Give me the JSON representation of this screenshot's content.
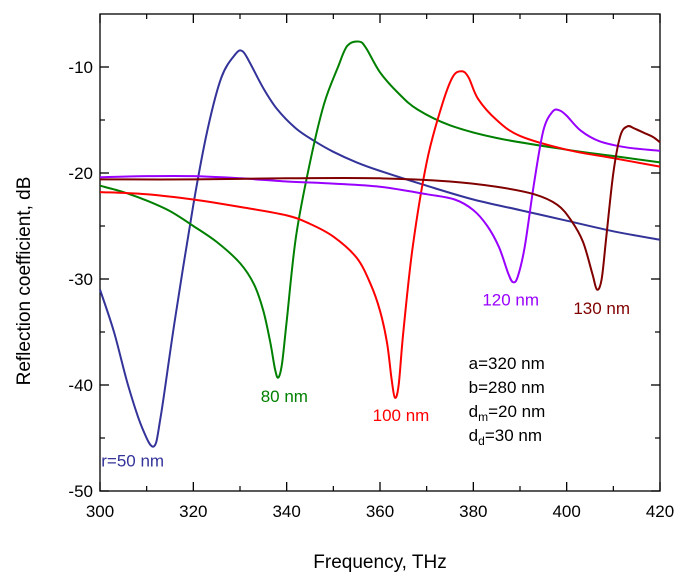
{
  "chart_data": {
    "type": "line",
    "xlabel": "Frequency, THz",
    "ylabel": "Reflection coefficient, dB",
    "xlim": [
      300,
      420
    ],
    "ylim": [
      -50,
      -5
    ],
    "x_ticks": [
      300,
      320,
      340,
      360,
      380,
      400,
      420
    ],
    "y_ticks": [
      -50,
      -40,
      -30,
      -20,
      -10
    ],
    "grid": false,
    "series": [
      {
        "name": "r=50 nm",
        "color": "#333399",
        "points": [
          [
            300,
            -31
          ],
          [
            303,
            -35
          ],
          [
            306,
            -40
          ],
          [
            309,
            -44
          ],
          [
            311.5,
            -45.8
          ],
          [
            313,
            -43
          ],
          [
            316,
            -34
          ],
          [
            320,
            -23
          ],
          [
            323,
            -16
          ],
          [
            326,
            -11
          ],
          [
            329,
            -8.8
          ],
          [
            330.5,
            -8.5
          ],
          [
            332,
            -9.5
          ],
          [
            335,
            -12
          ],
          [
            338,
            -14
          ],
          [
            342,
            -15.8
          ],
          [
            346,
            -17
          ],
          [
            350,
            -18
          ],
          [
            355,
            -19
          ],
          [
            360,
            -19.8
          ],
          [
            370,
            -21.2
          ],
          [
            380,
            -22.5
          ],
          [
            390,
            -23.5
          ],
          [
            400,
            -24.5
          ],
          [
            410,
            -25.5
          ],
          [
            420,
            -26.3
          ]
        ]
      },
      {
        "name": "80 nm",
        "color": "#008000",
        "points": [
          [
            300,
            -21.2
          ],
          [
            305,
            -21.8
          ],
          [
            310,
            -22.6
          ],
          [
            315,
            -23.6
          ],
          [
            320,
            -25
          ],
          [
            325,
            -26.5
          ],
          [
            330,
            -28.5
          ],
          [
            333,
            -30.5
          ],
          [
            335,
            -33
          ],
          [
            336.5,
            -36
          ],
          [
            337.5,
            -38.5
          ],
          [
            338.2,
            -39.3
          ],
          [
            339,
            -38
          ],
          [
            340,
            -34
          ],
          [
            342,
            -26
          ],
          [
            345,
            -19
          ],
          [
            348,
            -13.5
          ],
          [
            351,
            -10
          ],
          [
            353,
            -8
          ],
          [
            355.5,
            -7.6
          ],
          [
            357,
            -8.2
          ],
          [
            360,
            -10.5
          ],
          [
            364,
            -12.5
          ],
          [
            368,
            -14
          ],
          [
            375,
            -15.5
          ],
          [
            385,
            -16.7
          ],
          [
            400,
            -17.8
          ],
          [
            410,
            -18.4
          ],
          [
            420,
            -19
          ]
        ]
      },
      {
        "name": "100 nm",
        "color": "#ff0000",
        "points": [
          [
            300,
            -21.8
          ],
          [
            310,
            -22
          ],
          [
            320,
            -22.5
          ],
          [
            330,
            -23.2
          ],
          [
            340,
            -24
          ],
          [
            345,
            -24.8
          ],
          [
            350,
            -26
          ],
          [
            355,
            -28
          ],
          [
            358,
            -30.5
          ],
          [
            360,
            -33
          ],
          [
            361.5,
            -36
          ],
          [
            362.5,
            -39.5
          ],
          [
            363.2,
            -41.2
          ],
          [
            364,
            -40
          ],
          [
            365,
            -35
          ],
          [
            367,
            -27
          ],
          [
            370,
            -19
          ],
          [
            373,
            -14
          ],
          [
            375.5,
            -11
          ],
          [
            377.5,
            -10.4
          ],
          [
            379,
            -11
          ],
          [
            381,
            -13
          ],
          [
            385,
            -15
          ],
          [
            390,
            -16.5
          ],
          [
            400,
            -17.8
          ],
          [
            410,
            -18.6
          ],
          [
            420,
            -19.4
          ]
        ]
      },
      {
        "name": "120 nm",
        "color": "#9900ff",
        "points": [
          [
            300,
            -20.4
          ],
          [
            310,
            -20.3
          ],
          [
            320,
            -20.3
          ],
          [
            330,
            -20.5
          ],
          [
            340,
            -20.8
          ],
          [
            350,
            -21
          ],
          [
            360,
            -21.3
          ],
          [
            370,
            -22
          ],
          [
            376,
            -22.5
          ],
          [
            380,
            -23.5
          ],
          [
            383,
            -25
          ],
          [
            385.5,
            -27
          ],
          [
            387.5,
            -29.5
          ],
          [
            388.5,
            -30.3
          ],
          [
            389.5,
            -29.8
          ],
          [
            391,
            -27
          ],
          [
            393,
            -21
          ],
          [
            395,
            -16
          ],
          [
            397,
            -14.2
          ],
          [
            398.5,
            -14.1
          ],
          [
            400,
            -14.6
          ],
          [
            403,
            -16
          ],
          [
            407,
            -17
          ],
          [
            413,
            -17.6
          ],
          [
            420,
            -17.9
          ]
        ]
      },
      {
        "name": "130 nm",
        "color": "#800000",
        "points": [
          [
            300,
            -20.6
          ],
          [
            320,
            -20.6
          ],
          [
            340,
            -20.5
          ],
          [
            360,
            -20.5
          ],
          [
            375,
            -20.8
          ],
          [
            385,
            -21.3
          ],
          [
            393,
            -22
          ],
          [
            398,
            -23
          ],
          [
            401,
            -24.5
          ],
          [
            403.5,
            -26.5
          ],
          [
            405.5,
            -29.5
          ],
          [
            406.5,
            -31
          ],
          [
            407.5,
            -30
          ],
          [
            408.5,
            -26
          ],
          [
            410,
            -20
          ],
          [
            411.5,
            -16.5
          ],
          [
            413,
            -15.6
          ],
          [
            414.5,
            -15.8
          ],
          [
            416.5,
            -16.2
          ],
          [
            418.5,
            -16.6
          ],
          [
            420,
            -17.1
          ]
        ]
      }
    ],
    "annotations": [
      {
        "text": "r=50 nm",
        "x": 307,
        "y": -47.7,
        "color": "#333399",
        "anchor": "middle"
      },
      {
        "text": "80 nm",
        "x": 339.5,
        "y": -41.6,
        "color": "#008000",
        "anchor": "middle"
      },
      {
        "text": "100 nm",
        "x": 364.5,
        "y": -43.4,
        "color": "#ff0000",
        "anchor": "middle"
      },
      {
        "text": "120 nm",
        "x": 388,
        "y": -32.5,
        "color": "#9900ff",
        "anchor": "middle"
      },
      {
        "text": "130 nm",
        "x": 407.5,
        "y": -33.3,
        "color": "#800000",
        "anchor": "middle"
      }
    ],
    "parameters": [
      {
        "main": "a=320 nm",
        "parts": [
          {
            "t": "a=320 nm"
          }
        ]
      },
      {
        "main": "b=280 nm",
        "parts": [
          {
            "t": "b=280 nm"
          }
        ]
      },
      {
        "main": "dm=20 nm",
        "parts": [
          {
            "t": "d"
          },
          {
            "t": "m",
            "sub": true
          },
          {
            "t": "=20 nm"
          }
        ]
      },
      {
        "main": "dd=30 nm",
        "parts": [
          {
            "t": "d"
          },
          {
            "t": "d",
            "sub": true
          },
          {
            "t": "=30 nm"
          }
        ]
      }
    ],
    "parameters_position": {
      "x": 379,
      "y": -38.5
    }
  }
}
